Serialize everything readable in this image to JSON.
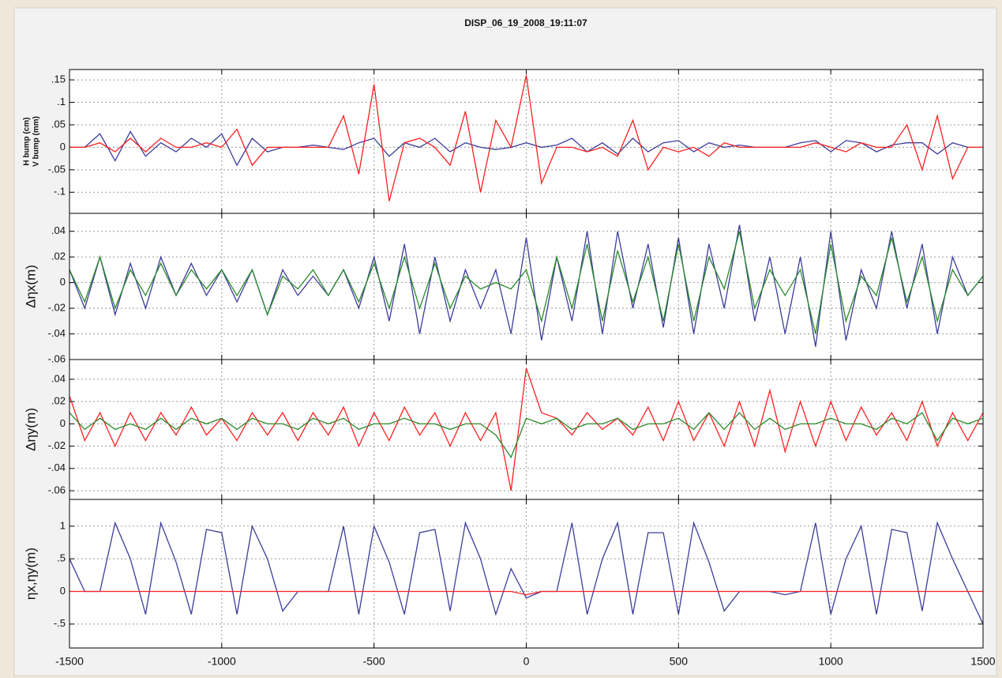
{
  "title": "DISP_06_19_2008_19:11:07",
  "chart_data": [
    {
      "type": "line",
      "ylabel": [
        "H bump (cm)",
        "V bump (mm)"
      ],
      "x": [
        -1500,
        -1450,
        -1400,
        -1350,
        -1300,
        -1250,
        -1200,
        -1150,
        -1100,
        -1050,
        -1000,
        -950,
        -900,
        -850,
        -800,
        -750,
        -700,
        -650,
        -600,
        -550,
        -500,
        -450,
        -400,
        -350,
        -300,
        -250,
        -200,
        -150,
        -100,
        -50,
        0,
        50,
        100,
        150,
        200,
        250,
        300,
        350,
        400,
        450,
        500,
        550,
        600,
        650,
        700,
        750,
        800,
        850,
        900,
        950,
        1000,
        1050,
        1100,
        1150,
        1200,
        1250,
        1300,
        1350,
        1400,
        1450,
        1500
      ],
      "xlim": [
        -1500,
        1500
      ],
      "xticks": [
        -1500,
        -1000,
        -500,
        0,
        500,
        1000,
        1500
      ],
      "ylim": [
        -0.147,
        0.173
      ],
      "yticks": [
        {
          "value": -0.1,
          "label": "-.1"
        },
        {
          "value": -0.05,
          "label": "-.05"
        },
        0,
        {
          "value": 0.05,
          "label": ".05"
        },
        {
          "value": 0.1,
          "label": ".1"
        },
        {
          "value": 0.15,
          "label": ".15"
        }
      ],
      "grid": true,
      "series": [
        {
          "color": "#3c3c9c",
          "values": [
            0,
            0,
            0.03,
            -0.03,
            0.035,
            -0.02,
            0.01,
            -0.01,
            0.02,
            0,
            0.03,
            -0.04,
            0.02,
            -0.01,
            0,
            0,
            0.005,
            0,
            -0.005,
            0.01,
            0.02,
            -0.02,
            0.01,
            0,
            0.02,
            -0.01,
            0.01,
            0,
            -0.005,
            0,
            0.01,
            0,
            0.005,
            0.02,
            -0.01,
            0.01,
            -0.015,
            0.02,
            -0.01,
            0.01,
            0.015,
            -0.01,
            0.01,
            0,
            0.005,
            0,
            0,
            0,
            0.01,
            0.015,
            -0.01,
            0.015,
            0.01,
            -0.01,
            0.005,
            0.01,
            0.01,
            -0.015,
            0.01,
            0,
            0
          ]
        },
        {
          "color": "#ff2020",
          "values": [
            0,
            0,
            0.01,
            -0.01,
            0.02,
            -0.01,
            0.02,
            0,
            0,
            0.01,
            0,
            0.04,
            -0.04,
            0,
            0,
            0,
            0,
            0,
            0.07,
            -0.06,
            0.14,
            -0.12,
            0.01,
            0.02,
            0,
            -0.04,
            0.08,
            -0.1,
            0.06,
            0,
            0.16,
            -0.08,
            0,
            0,
            -0.01,
            0,
            -0.02,
            0.06,
            -0.05,
            0,
            -0.01,
            0,
            -0.02,
            0.01,
            0,
            0,
            0,
            0,
            0,
            0.01,
            0,
            -0.01,
            0.01,
            0,
            0,
            0.05,
            -0.05,
            0.07,
            -0.07,
            0,
            0
          ]
        }
      ]
    },
    {
      "type": "line",
      "ylabel": "Δηx(m)",
      "x": [
        -1500,
        -1450,
        -1400,
        -1350,
        -1300,
        -1250,
        -1200,
        -1150,
        -1100,
        -1050,
        -1000,
        -950,
        -900,
        -850,
        -800,
        -750,
        -700,
        -650,
        -600,
        -550,
        -500,
        -450,
        -400,
        -350,
        -300,
        -250,
        -200,
        -150,
        -100,
        -50,
        0,
        50,
        100,
        150,
        200,
        250,
        300,
        350,
        400,
        450,
        500,
        550,
        600,
        650,
        700,
        750,
        800,
        850,
        900,
        950,
        1000,
        1050,
        1100,
        1150,
        1200,
        1250,
        1300,
        1350,
        1400,
        1450,
        1500
      ],
      "xlim": [
        -1500,
        1500
      ],
      "xticks": [
        -1500,
        -1000,
        -500,
        0,
        500,
        1000,
        1500
      ],
      "ylim": [
        -0.06,
        0.054
      ],
      "yticks": [
        {
          "value": -0.06,
          "label": "-.06"
        },
        {
          "value": -0.04,
          "label": "-.04"
        },
        {
          "value": -0.02,
          "label": "-.02"
        },
        0,
        {
          "value": 0.02,
          "label": ".02"
        },
        {
          "value": 0.04,
          "label": ".04"
        }
      ],
      "grid": true,
      "series": [
        {
          "color": "#3c3c9c",
          "values": [
            0.01,
            -0.02,
            0.02,
            -0.025,
            0.015,
            -0.02,
            0.02,
            -0.01,
            0.015,
            -0.01,
            0.01,
            -0.015,
            0.01,
            -0.025,
            0.01,
            -0.01,
            0.005,
            -0.01,
            0.01,
            -0.02,
            0.02,
            -0.03,
            0.03,
            -0.04,
            0.02,
            -0.03,
            0.01,
            -0.02,
            0.01,
            -0.04,
            0.035,
            -0.045,
            0.02,
            -0.03,
            0.04,
            -0.04,
            0.04,
            -0.02,
            0.03,
            -0.035,
            0.035,
            -0.04,
            0.03,
            -0.02,
            0.045,
            -0.03,
            0.02,
            -0.04,
            0.02,
            -0.05,
            0.04,
            -0.045,
            0.01,
            -0.02,
            0.04,
            -0.02,
            0.03,
            -0.04,
            0.02,
            -0.01,
            0.005
          ]
        },
        {
          "color": "#2a8a2a",
          "values": [
            0.01,
            -0.015,
            0.02,
            -0.02,
            0.01,
            -0.01,
            0.015,
            -0.01,
            0.01,
            -0.005,
            0.01,
            -0.01,
            0.01,
            -0.025,
            0.005,
            -0.005,
            0.01,
            -0.01,
            0.01,
            -0.015,
            0.015,
            -0.02,
            0.02,
            -0.02,
            0.015,
            -0.02,
            0.005,
            -0.005,
            0,
            -0.005,
            0.01,
            -0.03,
            0.02,
            -0.02,
            0.03,
            -0.03,
            0.025,
            -0.015,
            0.02,
            -0.03,
            0.03,
            -0.03,
            0.02,
            -0.005,
            0.04,
            -0.02,
            0.01,
            -0.01,
            0.01,
            -0.04,
            0.03,
            -0.03,
            0.005,
            -0.01,
            0.035,
            -0.015,
            0.02,
            -0.03,
            0.01,
            -0.01,
            0.005
          ]
        }
      ]
    },
    {
      "type": "line",
      "ylabel": "Δηy(m)",
      "x": [
        -1500,
        -1450,
        -1400,
        -1350,
        -1300,
        -1250,
        -1200,
        -1150,
        -1100,
        -1050,
        -1000,
        -950,
        -900,
        -850,
        -800,
        -750,
        -700,
        -650,
        -600,
        -550,
        -500,
        -450,
        -400,
        -350,
        -300,
        -250,
        -200,
        -150,
        -100,
        -50,
        0,
        50,
        100,
        150,
        200,
        250,
        300,
        350,
        400,
        450,
        500,
        550,
        600,
        650,
        700,
        750,
        800,
        850,
        900,
        950,
        1000,
        1050,
        1100,
        1150,
        1200,
        1250,
        1300,
        1350,
        1400,
        1450,
        1500
      ],
      "xlim": [
        -1500,
        1500
      ],
      "xticks": [
        -1500,
        -1000,
        -500,
        0,
        500,
        1000,
        1500
      ],
      "ylim": [
        -0.0678,
        0.0577
      ],
      "yticks": [
        {
          "value": -0.06,
          "label": "-.06"
        },
        {
          "value": -0.04,
          "label": "-.04"
        },
        {
          "value": -0.02,
          "label": "-.02"
        },
        0,
        {
          "value": 0.02,
          "label": ".02"
        },
        {
          "value": 0.04,
          "label": ".04"
        }
      ],
      "grid": true,
      "series": [
        {
          "color": "#ff2020",
          "values": [
            0.025,
            -0.015,
            0.01,
            -0.02,
            0.01,
            -0.015,
            0.01,
            -0.01,
            0.015,
            -0.01,
            0.005,
            -0.015,
            0.01,
            -0.01,
            0.01,
            -0.015,
            0.01,
            -0.01,
            0.015,
            -0.02,
            0.01,
            -0.015,
            0.015,
            -0.01,
            0.01,
            -0.02,
            0.01,
            -0.015,
            0.01,
            -0.06,
            0.05,
            0.01,
            0.005,
            -0.01,
            0.01,
            -0.005,
            0.005,
            -0.01,
            0.015,
            -0.015,
            0.02,
            -0.015,
            0.01,
            -0.02,
            0.02,
            -0.02,
            0.03,
            -0.025,
            0.02,
            -0.02,
            0.02,
            -0.015,
            0.015,
            -0.01,
            0.01,
            -0.015,
            0.02,
            -0.02,
            0.01,
            -0.015,
            0.01
          ]
        },
        {
          "color": "#2a8a2a",
          "values": [
            0.01,
            -0.005,
            0.005,
            -0.005,
            0,
            -0.005,
            0.005,
            -0.005,
            0.005,
            0,
            0.005,
            -0.005,
            0.005,
            0,
            0,
            -0.005,
            0.005,
            0,
            0.005,
            -0.005,
            0,
            0,
            0.005,
            0,
            0,
            -0.005,
            0,
            0,
            -0.01,
            -0.03,
            0.005,
            0,
            0.005,
            -0.005,
            0,
            0,
            0.005,
            -0.005,
            0,
            0,
            0.005,
            -0.005,
            0.01,
            -0.005,
            0.01,
            -0.005,
            0.005,
            -0.005,
            0,
            0,
            0.005,
            0,
            0,
            -0.005,
            0.005,
            0,
            0.01,
            -0.015,
            0.005,
            0,
            0.005
          ]
        }
      ]
    },
    {
      "type": "line",
      "ylabel": "ηx,ηy(m)",
      "x": [
        -1500,
        -1450,
        -1400,
        -1350,
        -1300,
        -1250,
        -1200,
        -1150,
        -1100,
        -1050,
        -1000,
        -950,
        -900,
        -850,
        -800,
        -750,
        -700,
        -650,
        -600,
        -550,
        -500,
        -450,
        -400,
        -350,
        -300,
        -250,
        -200,
        -150,
        -100,
        -50,
        0,
        50,
        100,
        150,
        200,
        250,
        300,
        350,
        400,
        450,
        500,
        550,
        600,
        650,
        700,
        750,
        800,
        850,
        900,
        950,
        1000,
        1050,
        1100,
        1150,
        1200,
        1250,
        1300,
        1350,
        1400,
        1450,
        1500
      ],
      "xlim": [
        -1500,
        1500
      ],
      "xticks": [
        -1500,
        -1000,
        -500,
        0,
        500,
        1000,
        1500
      ],
      "ylim": [
        -0.866,
        1.41
      ],
      "yticks": [
        {
          "value": -0.5,
          "label": "-.5"
        },
        0,
        {
          "value": 0.5,
          "label": ".5"
        },
        1
      ],
      "grid": true,
      "series": [
        {
          "color": "#3c3c9c",
          "values": [
            0.5,
            0,
            0,
            1.05,
            0.5,
            -0.35,
            1.05,
            0.45,
            -0.35,
            0.95,
            0.9,
            -0.35,
            1.0,
            0.5,
            -0.3,
            0,
            0,
            0,
            1.0,
            -0.35,
            1.0,
            0.45,
            -0.35,
            0.9,
            0.95,
            -0.3,
            1.05,
            0.5,
            -0.35,
            0.35,
            -0.1,
            0,
            0,
            1.05,
            -0.35,
            0.5,
            1.05,
            -0.35,
            0.9,
            0.9,
            -0.35,
            1.05,
            0.45,
            -0.3,
            0,
            0,
            0,
            -0.05,
            0,
            1.05,
            -0.35,
            0.5,
            1.0,
            -0.35,
            0.95,
            0.9,
            -0.3,
            1.05,
            0.5,
            0,
            -0.5
          ]
        },
        {
          "color": "#ff2020",
          "values": [
            0,
            0,
            0,
            0,
            0,
            0,
            0,
            0,
            0,
            0,
            0,
            0,
            0,
            0,
            0,
            0,
            0,
            0,
            0,
            0,
            0,
            0,
            0,
            0,
            0,
            0,
            0,
            0,
            0,
            0,
            -0.05,
            0,
            0,
            0,
            0,
            0,
            0,
            0,
            0,
            0,
            0,
            0,
            0,
            0,
            0,
            0,
            0,
            0,
            0,
            0,
            0,
            0,
            0,
            0,
            0,
            0,
            0,
            0,
            0,
            0,
            0
          ]
        }
      ]
    }
  ]
}
